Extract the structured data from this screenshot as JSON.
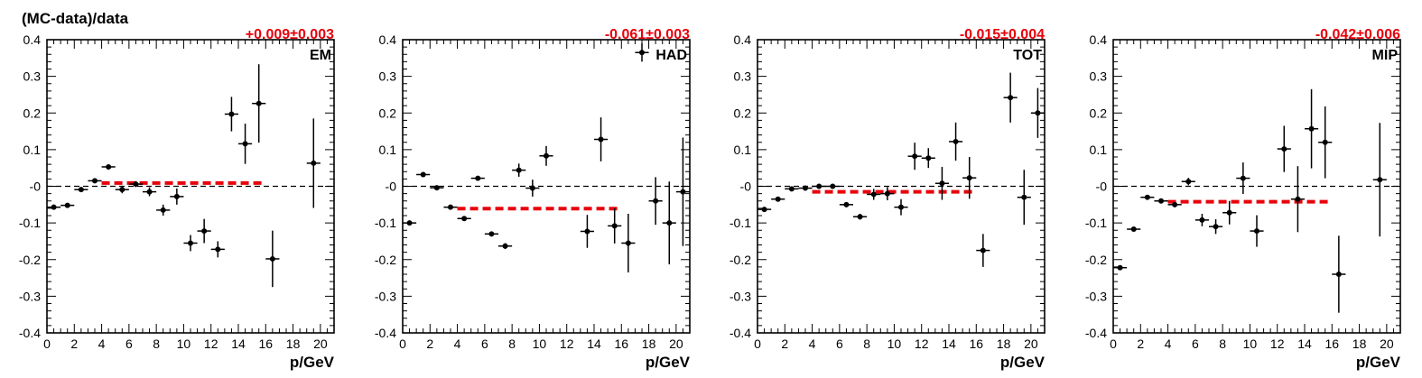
{
  "figure": {
    "ylabel": "(MC-data)/data",
    "xlabel": "p/GeV",
    "fit_color": "#e8000b",
    "marker_color": "#000000"
  },
  "chart_data": [
    {
      "type": "scatter",
      "panel_label": "EM",
      "fit_text": "+0.009±0.003",
      "fit": {
        "value": 0.009,
        "x_range": [
          4,
          16
        ]
      },
      "xlim": [
        0,
        21
      ],
      "ylim": [
        -0.4,
        0.4
      ],
      "xticks": [
        "0",
        "2",
        "4",
        "6",
        "8",
        "10",
        "12",
        "14",
        "16",
        "18",
        "20"
      ],
      "yticks": [
        "0.4",
        "0.3",
        "0.2",
        "0.1",
        "-0",
        "-0.1",
        "-0.2",
        "-0.3",
        "-0.4"
      ],
      "points": [
        {
          "x": 0.5,
          "y": -0.057,
          "err": 0.007
        },
        {
          "x": 1.5,
          "y": -0.052,
          "err": 0.006
        },
        {
          "x": 2.5,
          "y": -0.009,
          "err": 0.006
        },
        {
          "x": 3.5,
          "y": 0.015,
          "err": 0.005
        },
        {
          "x": 4.5,
          "y": 0.053,
          "err": 0.005
        },
        {
          "x": 5.5,
          "y": -0.009,
          "err": 0.01
        },
        {
          "x": 6.5,
          "y": 0.006,
          "err": 0.008
        },
        {
          "x": 7.5,
          "y": -0.015,
          "err": 0.012
        },
        {
          "x": 8.5,
          "y": -0.065,
          "err": 0.015
        },
        {
          "x": 9.5,
          "y": -0.028,
          "err": 0.022
        },
        {
          "x": 10.5,
          "y": -0.155,
          "err": 0.022
        },
        {
          "x": 11.5,
          "y": -0.122,
          "err": 0.033
        },
        {
          "x": 12.5,
          "y": -0.172,
          "err": 0.022
        },
        {
          "x": 13.5,
          "y": 0.197,
          "err": 0.047
        },
        {
          "x": 14.5,
          "y": 0.116,
          "err": 0.055
        },
        {
          "x": 15.5,
          "y": 0.226,
          "err": 0.107
        },
        {
          "x": 16.5,
          "y": -0.198,
          "err": 0.077
        },
        {
          "x": 19.5,
          "y": 0.063,
          "err": 0.122
        }
      ]
    },
    {
      "type": "scatter",
      "panel_label": "HAD",
      "fit_text": "-0.061±0.003",
      "fit": {
        "value": -0.061,
        "x_range": [
          4,
          16
        ]
      },
      "xlim": [
        0,
        21
      ],
      "ylim": [
        -0.4,
        0.4
      ],
      "xticks": [
        "0",
        "2",
        "4",
        "6",
        "8",
        "10",
        "12",
        "14",
        "16",
        "18",
        "20"
      ],
      "yticks": [
        "0.4",
        "0.3",
        "0.2",
        "0.1",
        "-0",
        "-0.1",
        "-0.2",
        "-0.3",
        "-0.4"
      ],
      "points": [
        {
          "x": 0.5,
          "y": -0.1,
          "err": 0.006
        },
        {
          "x": 1.5,
          "y": 0.032,
          "err": 0.005
        },
        {
          "x": 2.5,
          "y": -0.004,
          "err": 0.004
        },
        {
          "x": 3.5,
          "y": -0.057,
          "err": 0.004
        },
        {
          "x": 4.5,
          "y": -0.088,
          "err": 0.004
        },
        {
          "x": 5.5,
          "y": 0.022,
          "err": 0.005
        },
        {
          "x": 6.5,
          "y": -0.13,
          "err": 0.006
        },
        {
          "x": 7.5,
          "y": -0.163,
          "err": 0.008
        },
        {
          "x": 8.5,
          "y": 0.044,
          "err": 0.018
        },
        {
          "x": 9.5,
          "y": -0.005,
          "err": 0.023
        },
        {
          "x": 10.5,
          "y": 0.083,
          "err": 0.027
        },
        {
          "x": 13.5,
          "y": -0.123,
          "err": 0.045
        },
        {
          "x": 14.5,
          "y": 0.128,
          "err": 0.06
        },
        {
          "x": 15.5,
          "y": -0.108,
          "err": 0.048
        },
        {
          "x": 16.5,
          "y": -0.155,
          "err": 0.08
        },
        {
          "x": 17.5,
          "y": 0.365,
          "err": 0.025
        },
        {
          "x": 18.5,
          "y": -0.04,
          "err": 0.065
        },
        {
          "x": 19.5,
          "y": -0.1,
          "err": 0.113
        },
        {
          "x": 20.5,
          "y": -0.015,
          "err": 0.148
        }
      ]
    },
    {
      "type": "scatter",
      "panel_label": "TOT",
      "fit_text": "-0.015±0.004",
      "fit": {
        "value": -0.015,
        "x_range": [
          4,
          16
        ]
      },
      "xlim": [
        0,
        21
      ],
      "ylim": [
        -0.4,
        0.4
      ],
      "xticks": [
        "0",
        "2",
        "4",
        "6",
        "8",
        "10",
        "12",
        "14",
        "16",
        "18",
        "20"
      ],
      "yticks": [
        "0.4",
        "0.3",
        "0.2",
        "0.1",
        "-0",
        "-0.1",
        "-0.2",
        "-0.3",
        "-0.4"
      ],
      "points": [
        {
          "x": 0.5,
          "y": -0.063,
          "err": 0.006
        },
        {
          "x": 1.5,
          "y": -0.035,
          "err": 0.005
        },
        {
          "x": 2.5,
          "y": -0.007,
          "err": 0.005
        },
        {
          "x": 3.5,
          "y": -0.005,
          "err": 0.005
        },
        {
          "x": 4.5,
          "y": 0.0,
          "err": 0.005
        },
        {
          "x": 5.5,
          "y": 0.0,
          "err": 0.006
        },
        {
          "x": 6.5,
          "y": -0.05,
          "err": 0.007
        },
        {
          "x": 7.5,
          "y": -0.083,
          "err": 0.008
        },
        {
          "x": 8.5,
          "y": -0.022,
          "err": 0.015
        },
        {
          "x": 9.5,
          "y": -0.02,
          "err": 0.018
        },
        {
          "x": 10.5,
          "y": -0.057,
          "err": 0.022
        },
        {
          "x": 11.5,
          "y": 0.082,
          "err": 0.037
        },
        {
          "x": 12.5,
          "y": 0.077,
          "err": 0.027
        },
        {
          "x": 13.5,
          "y": 0.008,
          "err": 0.045
        },
        {
          "x": 14.5,
          "y": 0.122,
          "err": 0.052
        },
        {
          "x": 15.5,
          "y": 0.023,
          "err": 0.057
        },
        {
          "x": 16.5,
          "y": -0.175,
          "err": 0.045
        },
        {
          "x": 18.5,
          "y": 0.242,
          "err": 0.068
        },
        {
          "x": 19.5,
          "y": -0.03,
          "err": 0.075
        },
        {
          "x": 20.5,
          "y": 0.2,
          "err": 0.068
        }
      ]
    },
    {
      "type": "scatter",
      "panel_label": "MIP",
      "fit_text": "-0.042±0.006",
      "fit": {
        "value": -0.042,
        "x_range": [
          4,
          16
        ]
      },
      "xlim": [
        0,
        21
      ],
      "ylim": [
        -0.4,
        0.4
      ],
      "xticks": [
        "0",
        "2",
        "4",
        "6",
        "8",
        "10",
        "12",
        "14",
        "16",
        "18",
        "20"
      ],
      "yticks": [
        "0.4",
        "0.3",
        "0.2",
        "0.1",
        "-0",
        "-0.1",
        "-0.2",
        "-0.3",
        "-0.4"
      ],
      "points": [
        {
          "x": 0.5,
          "y": -0.222,
          "err": 0.006
        },
        {
          "x": 1.5,
          "y": -0.117,
          "err": 0.005
        },
        {
          "x": 2.5,
          "y": -0.03,
          "err": 0.005
        },
        {
          "x": 3.5,
          "y": -0.04,
          "err": 0.005
        },
        {
          "x": 4.5,
          "y": -0.05,
          "err": 0.007
        },
        {
          "x": 5.5,
          "y": 0.013,
          "err": 0.01
        },
        {
          "x": 6.5,
          "y": -0.092,
          "err": 0.017
        },
        {
          "x": 7.5,
          "y": -0.11,
          "err": 0.02
        },
        {
          "x": 8.5,
          "y": -0.072,
          "err": 0.032
        },
        {
          "x": 9.5,
          "y": 0.022,
          "err": 0.043
        },
        {
          "x": 10.5,
          "y": -0.122,
          "err": 0.043
        },
        {
          "x": 12.5,
          "y": 0.102,
          "err": 0.063
        },
        {
          "x": 13.5,
          "y": -0.035,
          "err": 0.09
        },
        {
          "x": 14.5,
          "y": 0.157,
          "err": 0.108
        },
        {
          "x": 15.5,
          "y": 0.12,
          "err": 0.098
        },
        {
          "x": 16.5,
          "y": -0.24,
          "err": 0.105
        },
        {
          "x": 19.5,
          "y": 0.018,
          "err": 0.155
        }
      ]
    }
  ]
}
